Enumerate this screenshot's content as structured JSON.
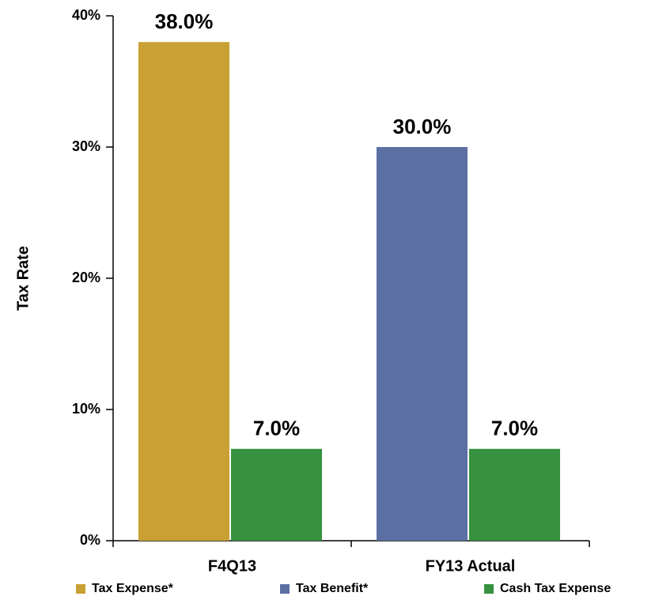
{
  "chart_data": {
    "type": "bar",
    "y_label": "Tax Rate",
    "categories": [
      "F4Q13",
      "FY13 Actual"
    ],
    "series": [
      {
        "name": "Tax Expense*",
        "color": "#c9a033",
        "values": [
          38,
          null
        ],
        "value_labels": [
          "38.0%",
          null
        ]
      },
      {
        "name": "Tax Benefit*",
        "color": "#5b6fa3",
        "values": [
          null,
          30
        ],
        "value_labels": [
          null,
          "30.0%"
        ]
      },
      {
        "name": "Cash Tax Expense",
        "color": "#36923e",
        "values": [
          7,
          7
        ],
        "value_labels": [
          "7.0%",
          "7.0%"
        ]
      }
    ],
    "ylim": [
      0,
      40
    ],
    "yticks": [
      {
        "value": 0,
        "label": "0%"
      },
      {
        "value": 10,
        "label": "10%"
      },
      {
        "value": 20,
        "label": "20%"
      },
      {
        "value": 30,
        "label": "30%"
      },
      {
        "value": 40,
        "label": "40%"
      }
    ],
    "grid": false,
    "legend": "bottom"
  }
}
